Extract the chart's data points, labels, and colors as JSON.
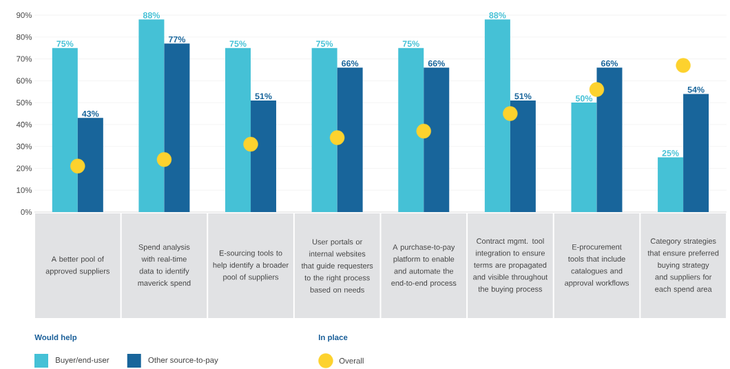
{
  "chart_data": {
    "type": "bar",
    "categories": [
      "A better pool of approved suppliers",
      "Spend analysis with real-time data to identify maverick spend",
      "E-sourcing tools to help identify a broader pool of suppliers",
      "User portals or internal websites that guide requesters to the right process based on needs",
      "A purchase-to-pay platform to enable and automate the end-to-end process",
      "Contract mgmt. tool integration to ensure terms are propagated and visible throughout the buying process",
      "E-procurement tools that include catalogues and approval workflows",
      "Category strategies that ensure preferred buying strategy and suppliers for each spend area"
    ],
    "series": [
      {
        "name": "Buyer/end-user",
        "color": "#45c1d6",
        "values": [
          75,
          88,
          75,
          75,
          75,
          88,
          50,
          25
        ],
        "value_labels": [
          "75%",
          "88%",
          "75%",
          "75%",
          "75%",
          "88%",
          "50%",
          "25%"
        ]
      },
      {
        "name": "Other source-to-pay",
        "color": "#18659b",
        "values": [
          43,
          77,
          51,
          66,
          66,
          51,
          66,
          54
        ],
        "value_labels": [
          "43%",
          "77%",
          "51%",
          "66%",
          "66%",
          "51%",
          "66%",
          "54%"
        ]
      },
      {
        "name": "Overall",
        "type": "scatter",
        "marker": "circle",
        "color": "#fdd22e",
        "values": [
          21,
          24,
          31,
          34,
          37,
          45,
          56,
          67
        ]
      }
    ],
    "ylim": [
      0,
      90
    ],
    "yticks": [
      {
        "value": 0,
        "label": "0%"
      },
      {
        "value": 10,
        "label": "10%"
      },
      {
        "value": 20,
        "label": "20%"
      },
      {
        "value": 30,
        "label": "30%"
      },
      {
        "value": 40,
        "label": "40%"
      },
      {
        "value": 50,
        "label": "50%"
      },
      {
        "value": 60,
        "label": "60%"
      },
      {
        "value": 70,
        "label": "70%"
      },
      {
        "value": 80,
        "label": "80%"
      },
      {
        "value": 90,
        "label": "90%"
      }
    ],
    "grid": "y",
    "legend": "bottom",
    "legend_title": "Would help",
    "annotations": [
      "In place"
    ]
  }
}
